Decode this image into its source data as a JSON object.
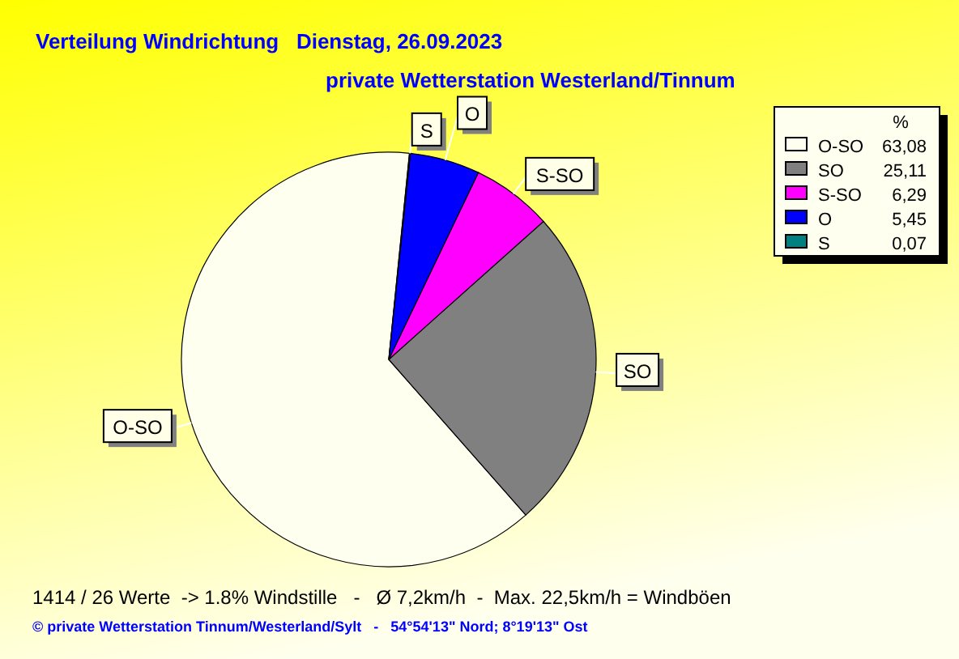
{
  "chart_data": {
    "type": "pie",
    "title": "Verteilung Windrichtung   Dienstag, 26.09.2023",
    "subtitle": "private Wetterstation Westerland/Tinnum",
    "categories": [
      "O-SO",
      "SO",
      "S-SO",
      "O",
      "S"
    ],
    "values": [
      63.08,
      25.11,
      6.29,
      5.45,
      0.07
    ],
    "colors": [
      "#fffff0",
      "#808080",
      "#ff00ff",
      "#0000ff",
      "#008080"
    ],
    "value_labels": [
      "63,08",
      "25,11",
      "6,29",
      "5,45",
      "0,07"
    ],
    "legend_title": "%",
    "legend": "right",
    "annotations": [
      "1414 / 26 Werte  -> 1.8% Windstille   -   Ø 7,2km/h  -  Max. 22,5km/h = Windböen",
      "© private Wetterstation Tinnum/Westerland/Sylt   -   54°54'13\" Nord; 8°19'13\" Ost"
    ]
  }
}
